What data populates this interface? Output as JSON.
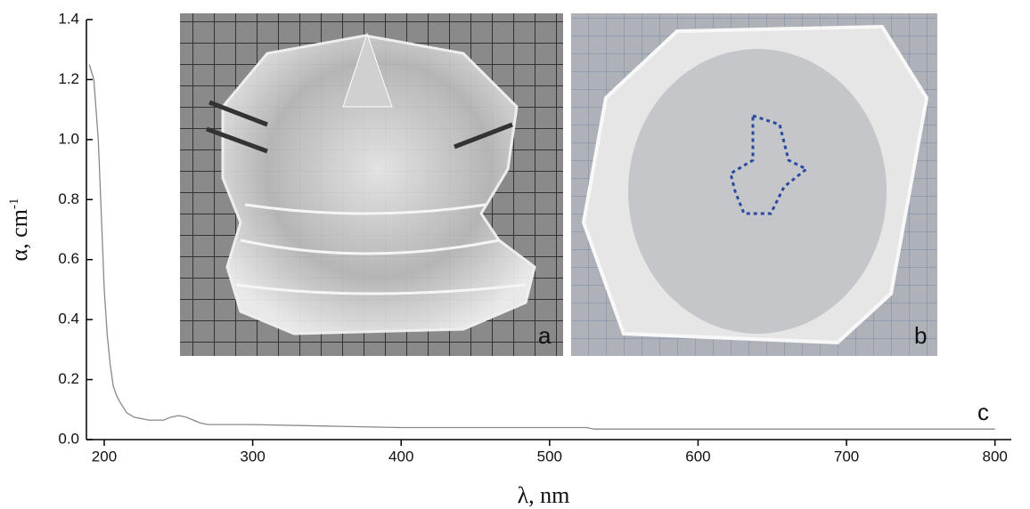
{
  "chart_data": {
    "type": "line",
    "xlabel": "λ, nm",
    "ylabel": "α, cm",
    "ylabel_sup": "-1",
    "photo_labels": [
      "a",
      "b"
    ],
    "curve_label": "c",
    "x": [
      190,
      193,
      196,
      198,
      200,
      202,
      204,
      206,
      208,
      210,
      215,
      220,
      230,
      240,
      245,
      250,
      255,
      260,
      265,
      270,
      300,
      350,
      400,
      500,
      525,
      530,
      600,
      700,
      800
    ],
    "series": [
      {
        "name": "c",
        "color": "#888888",
        "values": [
          1.25,
          1.2,
          1.0,
          0.75,
          0.5,
          0.35,
          0.25,
          0.18,
          0.15,
          0.13,
          0.09,
          0.075,
          0.065,
          0.065,
          0.075,
          0.08,
          0.075,
          0.065,
          0.055,
          0.05,
          0.05,
          0.045,
          0.04,
          0.04,
          0.04,
          0.035,
          0.035,
          0.035,
          0.035
        ]
      }
    ],
    "xlim": [
      188,
      811
    ],
    "ylim": [
      0,
      1.4
    ],
    "xticks": [
      200,
      300,
      400,
      500,
      600,
      700,
      800
    ],
    "yticks": [
      {
        "value": 0,
        "label": "0.0"
      },
      0.2,
      0.4,
      0.6,
      0.8,
      {
        "value": 1,
        "label": "1.0"
      },
      1.2,
      1.4
    ]
  }
}
